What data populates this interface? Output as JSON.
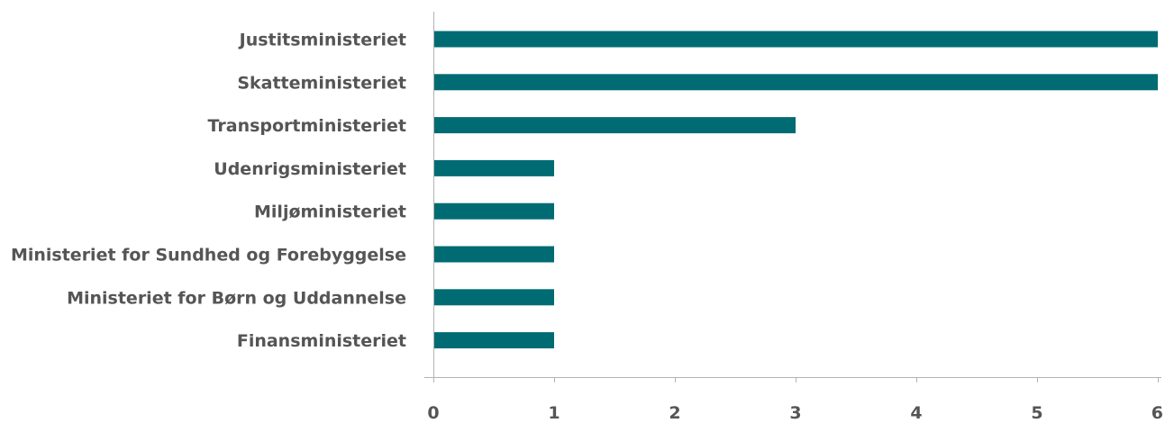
{
  "chart_data": {
    "type": "bar",
    "orientation": "horizontal",
    "categories": [
      "Justitsministeriet",
      "Skatteministeriet",
      "Transportministeriet",
      "Udenrigsministeriet",
      "Miljøministeriet",
      "Ministeriet for Sundhed og Forebyggelse",
      "Ministeriet for Børn og Uddannelse",
      "Finansministeriet"
    ],
    "values": [
      6,
      6,
      3,
      1,
      1,
      1,
      1,
      1
    ],
    "xlim": [
      0,
      6
    ],
    "xticks": [
      "0",
      "1",
      "2",
      "3",
      "4",
      "5",
      "6"
    ],
    "bar_color": "#006b73",
    "axis_color": "#b3b3b3",
    "label_color": "#555555",
    "grid": false,
    "legend": "none"
  }
}
